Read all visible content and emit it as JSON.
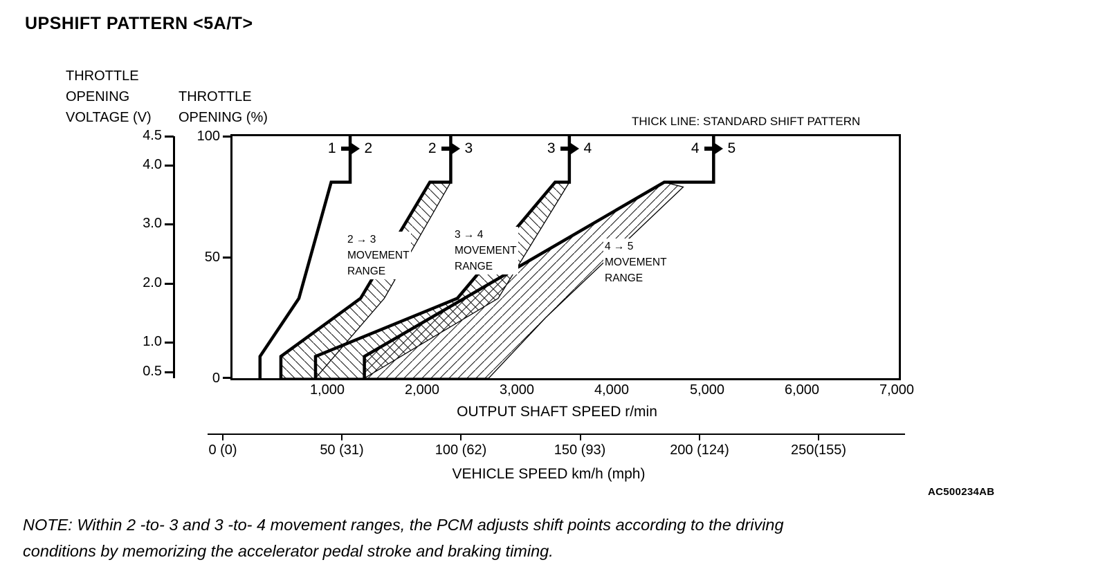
{
  "title": "UPSHIFT PATTERN <5A/T>",
  "legend": "THICK LINE: STANDARD SHIFT PATTERN",
  "left_axis": {
    "lines": [
      "THROTTLE",
      "OPENING",
      "VOLTAGE (V)"
    ],
    "ticks": [
      "4.5",
      "4.0",
      "3.0",
      "2.0",
      "1.0",
      "0.5"
    ]
  },
  "percent_axis": {
    "lines": [
      "THROTTLE",
      "OPENING (%)"
    ],
    "ticks": [
      "100",
      "50",
      "0"
    ]
  },
  "rpm_axis": {
    "title": "OUTPUT SHAFT SPEED r/min",
    "ticks": [
      "1,000",
      "2,000",
      "3,000",
      "4,000",
      "5,000",
      "6,000",
      "7,000"
    ]
  },
  "speed_axis": {
    "title": "VEHICLE SPEED km/h (mph)",
    "ticks": [
      "0 (0)",
      "50 (31)",
      "100 (62)",
      "150 (93)",
      "200 (124)",
      "250(155)"
    ]
  },
  "shift_labels": [
    {
      "from": "1",
      "to": "2"
    },
    {
      "from": "2",
      "to": "3"
    },
    {
      "from": "3",
      "to": "4"
    },
    {
      "from": "4",
      "to": "5"
    }
  ],
  "range_labels": [
    {
      "l1": "2 → 3",
      "l2": "MOVEMENT",
      "l3": "RANGE"
    },
    {
      "l1": "3 → 4",
      "l2": "MOVEMENT",
      "l3": "RANGE"
    },
    {
      "l1": "4 → 5",
      "l2": "MOVEMENT",
      "l3": "RANGE"
    }
  ],
  "code": "AC500234AB",
  "note_lines": [
    "NOTE: Within 2 -to- 3 and 3 -to- 4 movement ranges, the PCM adjusts shift points according to the driving",
    "conditions by memorizing the accelerator pedal stroke and braking timing."
  ],
  "chart_data": {
    "type": "line",
    "title": "UPSHIFT PATTERN <5A/T>",
    "xlabel": "OUTPUT SHAFT SPEED r/min",
    "ylabel": "THROTTLE OPENING (%)",
    "ylabel_secondary": "THROTTLE OPENING VOLTAGE (V)",
    "x_range_rpm": [
      0,
      7000
    ],
    "y_range_percent": [
      0,
      100
    ],
    "y_ticks_voltage": [
      4.5,
      4.0,
      3.0,
      2.0,
      1.0,
      0.5
    ],
    "secondary_x_label": "VEHICLE SPEED km/h (mph)",
    "secondary_x_ticks_kmh_mph": [
      [
        0,
        0
      ],
      [
        50,
        31
      ],
      [
        100,
        62
      ],
      [
        150,
        93
      ],
      [
        200,
        124
      ],
      [
        250,
        155
      ]
    ],
    "legend_note": "THICK LINE: STANDARD SHIFT PATTERN",
    "series": [
      {
        "name": "1-2 standard shift line",
        "style": "thick",
        "points": [
          [
            290,
            0
          ],
          [
            290,
            9
          ],
          [
            700,
            33
          ],
          [
            1040,
            81
          ],
          [
            1240,
            81
          ],
          [
            1240,
            100
          ]
        ]
      },
      {
        "name": "2-3 standard shift line",
        "style": "thick",
        "points": [
          [
            510,
            0
          ],
          [
            510,
            9
          ],
          [
            1350,
            33
          ],
          [
            2080,
            81
          ],
          [
            2300,
            81
          ],
          [
            2300,
            100
          ]
        ]
      },
      {
        "name": "3-4 standard shift line",
        "style": "thick",
        "points": [
          [
            875,
            0
          ],
          [
            875,
            9
          ],
          [
            2370,
            33
          ],
          [
            3400,
            81
          ],
          [
            3550,
            81
          ],
          [
            3550,
            100
          ]
        ]
      },
      {
        "name": "4-5 standard shift line",
        "style": "thick",
        "points": [
          [
            1390,
            0
          ],
          [
            1390,
            9
          ],
          [
            4550,
            81
          ],
          [
            5070,
            81
          ],
          [
            5070,
            100
          ]
        ]
      }
    ],
    "regions": [
      {
        "name": "2-3 movement range",
        "hatch": "\\",
        "points": [
          [
            510,
            0
          ],
          [
            510,
            9
          ],
          [
            1350,
            33
          ],
          [
            2080,
            81
          ],
          [
            2300,
            81
          ],
          [
            1600,
            33
          ],
          [
            875,
            0
          ]
        ]
      },
      {
        "name": "3-4 movement range",
        "hatch": "\\",
        "points": [
          [
            875,
            0
          ],
          [
            875,
            9
          ],
          [
            2370,
            33
          ],
          [
            3400,
            81
          ],
          [
            3550,
            81
          ],
          [
            2800,
            33
          ],
          [
            1390,
            0
          ]
        ]
      },
      {
        "name": "4-5 movement range",
        "hatch": "/",
        "points": [
          [
            1390,
            0
          ],
          [
            1390,
            9
          ],
          [
            4550,
            81
          ],
          [
            4750,
            79
          ],
          [
            3300,
            25
          ],
          [
            2700,
            0
          ]
        ]
      }
    ]
  }
}
